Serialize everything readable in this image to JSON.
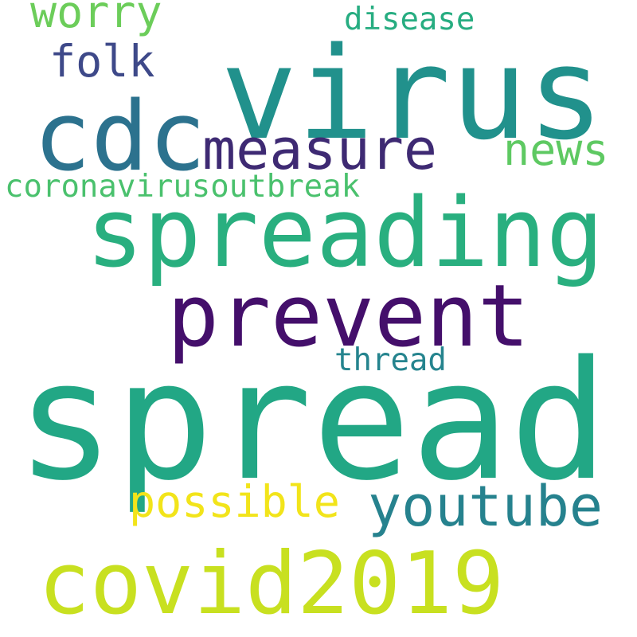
{
  "words": [
    {
      "text": "virus",
      "color": "#21918c"
    },
    {
      "text": "spread",
      "color": "#22a785"
    },
    {
      "text": "spreading",
      "color": "#29af7f"
    },
    {
      "text": "cdc",
      "color": "#2c728e"
    },
    {
      "text": "prevent",
      "color": "#440f6b"
    },
    {
      "text": "covid2019",
      "color": "#c8e020"
    },
    {
      "text": "measure",
      "color": "#3e2a73"
    },
    {
      "text": "youtube",
      "color": "#26828e"
    },
    {
      "text": "possible",
      "color": "#f2e41a"
    },
    {
      "text": "folk",
      "color": "#3e4989"
    },
    {
      "text": "worry",
      "color": "#6ccd5a"
    },
    {
      "text": "news",
      "color": "#5ec962"
    },
    {
      "text": "coronavirusoutbreak",
      "color": "#4ac16d"
    },
    {
      "text": "disease",
      "color": "#27ad81"
    },
    {
      "text": "thread",
      "color": "#25848e"
    }
  ]
}
